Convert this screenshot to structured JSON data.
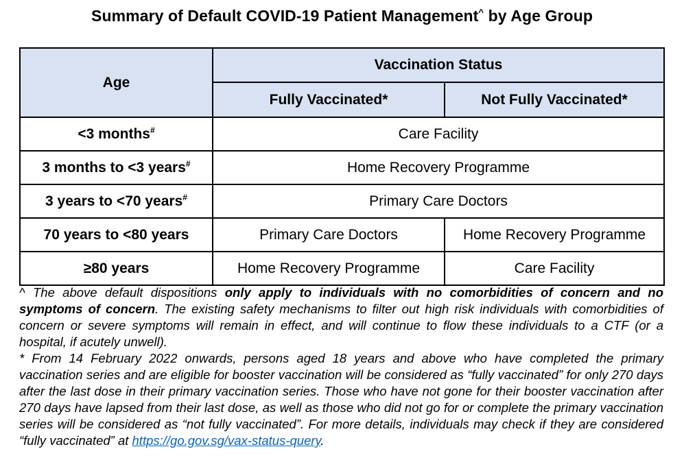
{
  "title": {
    "text": "Summary of Default COVID-19 Patient Management",
    "marker": "^",
    "suffix": " by Age Group"
  },
  "table": {
    "age_header": "Age",
    "vaccination_header": "Vaccination Status",
    "fully_header": "Fully Vaccinated*",
    "not_fully_header": "Not Fully Vaccinated*",
    "rows": [
      {
        "age": "<3 months",
        "marker": "#",
        "combined": "Care Facility"
      },
      {
        "age": "3 months to <3 years",
        "marker": "#",
        "combined": "Home Recovery Programme"
      },
      {
        "age": "3 years to <70 years",
        "marker": "#",
        "combined": "Primary Care Doctors"
      },
      {
        "age": "70 years to <80 years",
        "fully": "Primary Care Doctors",
        "not_fully": "Home Recovery Programme"
      },
      {
        "age": "≥80 years",
        "fully": "Home Recovery Programme",
        "not_fully": "Care Facility"
      }
    ]
  },
  "notes": {
    "n1_a": "^ The above default dispositions ",
    "n1_bold": "only apply to individuals with no comorbidities of concern and no symptoms of concern",
    "n1_b": ". The existing safety mechanisms to filter out high risk individuals with comorbidities of concern or severe symptoms will remain in effect, and will continue to flow these individuals to a CTF (or a hospital, if acutely unwell).",
    "n2_a": "* From 14 February 2022 onwards, persons aged 18 years and above who have completed the primary vaccination series and are eligible for booster vaccination will be considered as “fully vaccinated” for only 270 days after the last dose in their primary vaccination series. Those who have not gone for their booster vaccination after 270 days have lapsed from their last dose, as well as those who did not go for or complete the primary vaccination series will be considered as “not fully vaccinated”. For more details, individuals may check if they are considered “fully vaccinated” at ",
    "link": "https://go.gov.sg/vax-status-query",
    "n2_b": "."
  }
}
